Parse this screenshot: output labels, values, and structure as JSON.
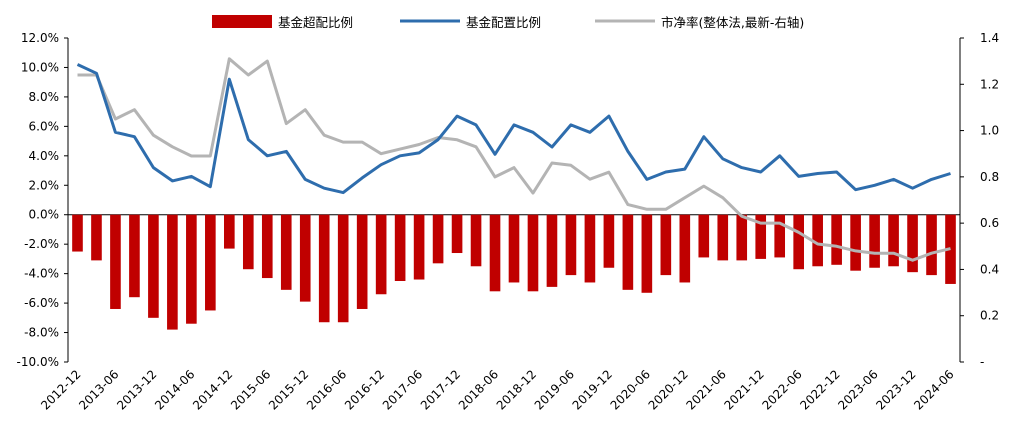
{
  "chart_data": {
    "type": "bar+line",
    "title": "",
    "xlabel": "",
    "ylabel": "",
    "legend": {
      "position": "top",
      "items": [
        {
          "label": "基金超配比例",
          "shape": "bar",
          "color": "#c00000"
        },
        {
          "label": "基金配置比例",
          "shape": "line",
          "color": "#2e6dad"
        },
        {
          "label": "市净率(整体法,最新-右轴)",
          "shape": "line",
          "color": "#b4b4b4"
        }
      ]
    },
    "left_axis": {
      "min": -10,
      "max": 12,
      "step": 2,
      "tick_labels": [
        "-10.0%",
        "-8.0%",
        "-6.0%",
        "-4.0%",
        "-2.0%",
        "0.0%",
        "2.0%",
        "4.0%",
        "6.0%",
        "8.0%",
        "10.0%",
        "12.0%"
      ]
    },
    "right_axis": {
      "min": 0,
      "max": 1.4,
      "step": 0.2,
      "tick_labels": [
        "-",
        "0.2",
        "0.4",
        "0.6",
        "0.8",
        "1.0",
        "1.2",
        "1.4"
      ]
    },
    "x_tick_labels": [
      "2012-12",
      "2013-06",
      "2013-12",
      "2014-06",
      "2014-12",
      "2015-06",
      "2015-12",
      "2016-06",
      "2016-12",
      "2017-06",
      "2017-12",
      "2018-06",
      "2018-12",
      "2019-06",
      "2019-12",
      "2020-06",
      "2020-12",
      "2021-06",
      "2021-12",
      "2022-06",
      "2022-12",
      "2023-06",
      "2023-12",
      "2024-06"
    ],
    "series": [
      {
        "name": "基金超配比例",
        "type": "bar",
        "axis": "left",
        "color": "#c00000",
        "values": [
          -2.5,
          -3.1,
          -6.4,
          -5.6,
          -7.0,
          -7.8,
          -7.4,
          -6.5,
          -2.3,
          -3.7,
          -4.3,
          -5.1,
          -5.9,
          -7.3,
          -7.3,
          -6.4,
          -5.4,
          -4.5,
          -4.4,
          -3.3,
          -2.6,
          -3.5,
          -5.2,
          -4.6,
          -5.2,
          -4.9,
          -4.1,
          -4.6,
          -3.6,
          -5.1,
          -5.3,
          -4.1,
          -4.6,
          -2.9,
          -3.1,
          -3.1,
          -3.0,
          -2.9,
          -3.7,
          -3.5,
          -3.4,
          -3.8,
          -3.6,
          -3.5,
          -3.9,
          -4.1,
          -4.7
        ]
      },
      {
        "name": "基金配置比例",
        "type": "line",
        "axis": "left",
        "color": "#2e6dad",
        "values": [
          10.2,
          9.6,
          5.6,
          5.3,
          3.2,
          2.3,
          2.6,
          1.9,
          9.2,
          5.1,
          4.0,
          4.3,
          2.4,
          1.8,
          1.5,
          2.5,
          3.4,
          4.0,
          4.2,
          5.1,
          6.7,
          6.1,
          4.1,
          6.1,
          5.6,
          4.6,
          6.1,
          5.6,
          6.7,
          4.3,
          2.4,
          2.9,
          3.1,
          5.3,
          3.8,
          3.2,
          2.9,
          4.0,
          2.6,
          2.8,
          2.9,
          1.7,
          2.0,
          2.4,
          1.8,
          2.4,
          2.8
        ]
      },
      {
        "name": "市净率(整体法,最新-右轴)",
        "type": "line",
        "axis": "right",
        "color": "#b4b4b4",
        "values": [
          1.24,
          1.24,
          1.05,
          1.09,
          0.98,
          0.93,
          0.89,
          0.89,
          1.31,
          1.24,
          1.3,
          1.03,
          1.09,
          0.98,
          0.95,
          0.95,
          0.9,
          0.92,
          0.94,
          0.97,
          0.96,
          0.93,
          0.8,
          0.84,
          0.73,
          0.86,
          0.85,
          0.79,
          0.82,
          0.68,
          0.66,
          0.66,
          0.71,
          0.76,
          0.71,
          0.63,
          0.6,
          0.6,
          0.56,
          0.51,
          0.5,
          0.48,
          0.47,
          0.47,
          0.44,
          0.47,
          0.49
        ]
      }
    ]
  }
}
